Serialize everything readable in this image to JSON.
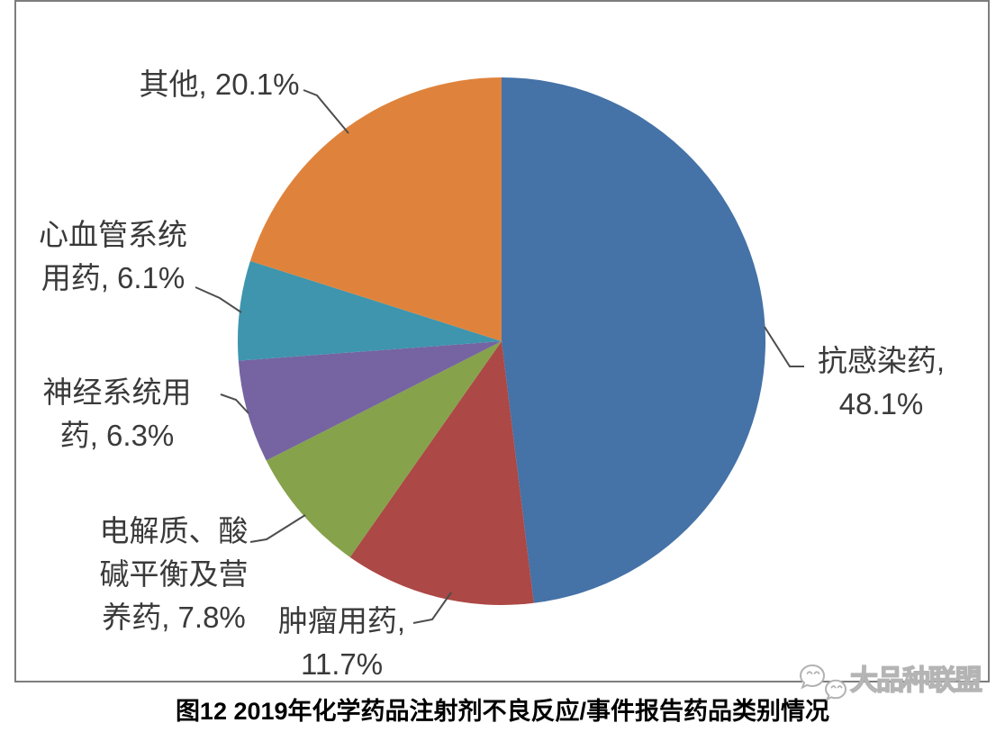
{
  "caption": "图12 2019年化学药品注射剂不良反应/事件报告药品类别情况",
  "watermark": {
    "icon": "wechat-chat-bubbles-icon",
    "text": "大品种联盟"
  },
  "chart_data": {
    "type": "pie",
    "title": "图12 2019年化学药品注射剂不良反应/事件报告药品类别情况",
    "start_angle_deg": 0,
    "direction": "clockwise",
    "legend": "none",
    "slices": [
      {
        "name": "抗感染药",
        "value": 48.1,
        "color": "#4572A7",
        "label_text": "抗感染药,\n48.1%"
      },
      {
        "name": "肿瘤用药",
        "value": 11.7,
        "color": "#AC4845",
        "label_text": "肿瘤用药,\n11.7%"
      },
      {
        "name": "电解质、酸碱平衡及营养药",
        "value": 7.8,
        "color": "#86A24B",
        "label_text": "电解质、酸\n碱平衡及营\n养药, 7.8%"
      },
      {
        "name": "神经系统用药",
        "value": 6.3,
        "color": "#7564A1",
        "label_text": "神经系统用\n药, 6.3%"
      },
      {
        "name": "心血管系统用药",
        "value": 6.1,
        "color": "#3E95AD",
        "label_text": "心血管系统\n用药, 6.1%"
      },
      {
        "name": "其他",
        "value": 20.1,
        "color": "#DF833C",
        "label_text": "其他, 20.1%"
      }
    ]
  }
}
